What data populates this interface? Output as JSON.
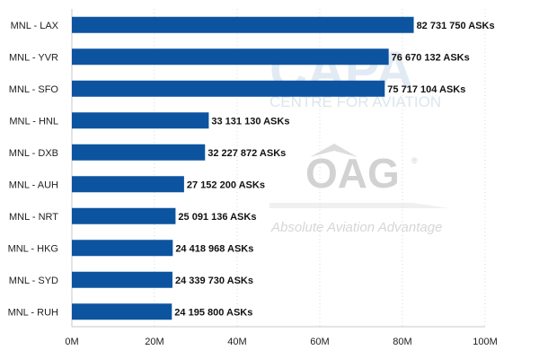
{
  "chart_data": {
    "type": "bar",
    "orientation": "horizontal",
    "title": "",
    "xlabel": "",
    "ylabel": "",
    "categories": [
      "MNL - LAX",
      "MNL - YVR",
      "MNL - SFO",
      "MNL - HNL",
      "MNL - DXB",
      "MNL - AUH",
      "MNL - NRT",
      "MNL - HKG",
      "MNL - SYD",
      "MNL - RUH"
    ],
    "values": [
      82731750,
      76670132,
      75717104,
      33131130,
      32227872,
      27152200,
      25091136,
      24418968,
      24339730,
      24195800
    ],
    "value_labels": [
      "82 731 750 ASKs",
      "76 670 132 ASKs",
      "75 717 104 ASKs",
      "33 131 130 ASKs",
      "32 227 872 ASKs",
      "27 152 200 ASKs",
      "25 091 136 ASKs",
      "24 418 968 ASKs",
      "24 339 730 ASKs",
      "24 195 800 ASKs"
    ],
    "xlim": [
      0,
      100000000
    ],
    "ticks": [
      0,
      20000000,
      40000000,
      60000000,
      80000000,
      100000000
    ],
    "tick_labels": [
      "0M",
      "20M",
      "40M",
      "60M",
      "80M",
      "100M"
    ],
    "grid": true,
    "legend": "none",
    "bar_color": "#0d54a0"
  },
  "watermarks": {
    "capa_logo": "CAPA",
    "capa_text": "CENTRE FOR AVIATION",
    "oag_logo": "OAG",
    "oag_mark": "®",
    "oag_text": "Absolute Aviation Advantage"
  }
}
